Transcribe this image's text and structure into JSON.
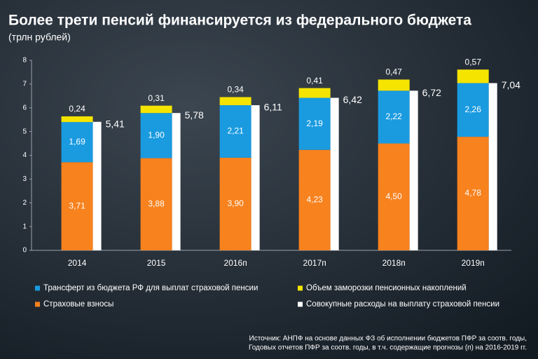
{
  "chart_data": {
    "type": "bar",
    "title": "Более трети пенсий финансируется из федерального бюджета",
    "subtitle": "(трлн рублей)",
    "categories": [
      "2014",
      "2015",
      "2016п",
      "2017п",
      "2018п",
      "2019п"
    ],
    "series": [
      {
        "name": "Страховые взносы",
        "color": "#f7821e",
        "stacked": true,
        "values": [
          3.71,
          3.88,
          3.9,
          4.23,
          4.5,
          4.78
        ],
        "value_labels": [
          "3,71",
          "3,88",
          "3,90",
          "4,23",
          "4,50",
          "4,78"
        ]
      },
      {
        "name": "Трансферт из бюджета РФ для выплат страховой пенсии",
        "color": "#1a9be0",
        "stacked": true,
        "values": [
          1.69,
          1.9,
          2.21,
          2.19,
          2.22,
          2.26
        ],
        "value_labels": [
          "1,69",
          "1,90",
          "2,21",
          "2,19",
          "2,22",
          "2,26"
        ]
      },
      {
        "name": "Объем заморозки пенсионных накоплений",
        "color": "#f4e400",
        "stacked": true,
        "values": [
          0.24,
          0.31,
          0.34,
          0.41,
          0.47,
          0.57
        ],
        "value_labels": [
          "0,24",
          "0,31",
          "0,34",
          "0,41",
          "0,47",
          "0,57"
        ]
      },
      {
        "name": "Совокупные расходы на выплату страховой пенсии",
        "color": "#ffffff",
        "stacked": false,
        "values": [
          5.41,
          5.78,
          6.11,
          6.42,
          6.72,
          7.04
        ],
        "value_labels": [
          "5,41",
          "5,78",
          "6,11",
          "6,42",
          "6,72",
          "7,04"
        ]
      }
    ],
    "ylim": [
      0,
      8
    ],
    "yticks": [
      0,
      1,
      2,
      3,
      4,
      5,
      6,
      7,
      8
    ],
    "source": [
      "Источник: АНПФ на основе данных ФЗ об исполнении бюджетов ПФР за соотв. годы,",
      "Годовых отчетов ПФР за соотв. годы, в т.ч. содержащие прогнозы (п) на 2016-2019 гг."
    ]
  }
}
